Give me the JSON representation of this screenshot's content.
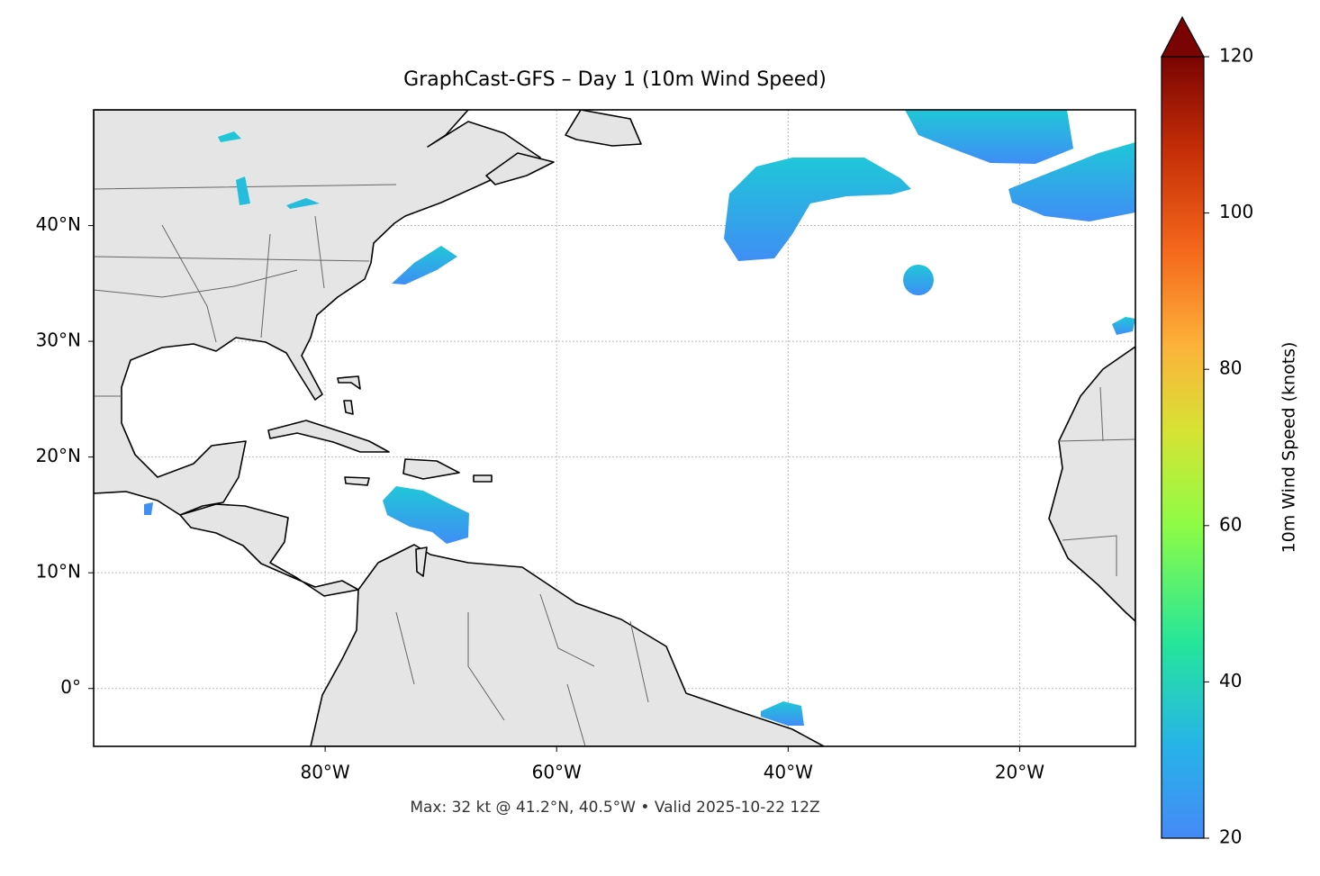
{
  "chart_data": {
    "type": "map",
    "title": "GraphCast-GFS – Day 1 (10m Wind Speed)",
    "footer": "Max: 32 kt @ 41.2°N, 40.5°W • Valid 2025-10-22 12Z",
    "xlim": [
      -100,
      -10
    ],
    "ylim": [
      -5,
      50
    ],
    "xticks": [
      {
        "value": -80,
        "label": "80°W"
      },
      {
        "value": -60,
        "label": "60°W"
      },
      {
        "value": -40,
        "label": "40°W"
      },
      {
        "value": -20,
        "label": "20°W"
      }
    ],
    "yticks": [
      {
        "value": 0,
        "label": "0°"
      },
      {
        "value": 10,
        "label": "10°N"
      },
      {
        "value": 20,
        "label": "20°N"
      },
      {
        "value": 30,
        "label": "30°N"
      },
      {
        "value": 40,
        "label": "40°N"
      }
    ],
    "grid": true,
    "colorbar": {
      "label": "10m Wind Speed (knots)",
      "lim": [
        20,
        120
      ],
      "ticks": [
        20,
        40,
        60,
        80,
        100,
        120
      ]
    }
  }
}
